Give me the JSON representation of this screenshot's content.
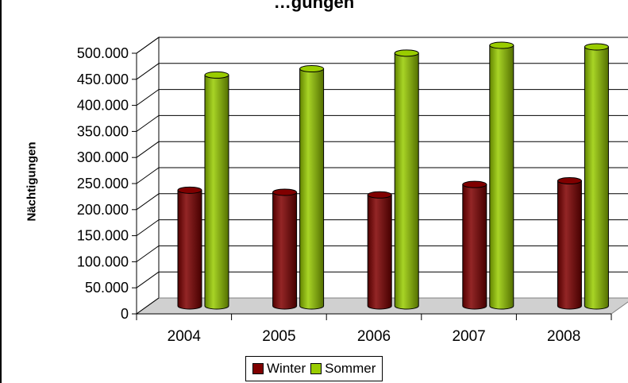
{
  "chart_data": {
    "type": "bar",
    "title": "…gungen",
    "xlabel": "",
    "ylabel": "Nächtigungen",
    "categories": [
      "2004",
      "2005",
      "2006",
      "2007",
      "2008"
    ],
    "ylim": [
      0,
      500000
    ],
    "yticks": [
      "0",
      "50.000",
      "100.000",
      "150.000",
      "200.000",
      "250.000",
      "300.000",
      "350.000",
      "400.000",
      "450.000",
      "500.000"
    ],
    "grid": true,
    "legend_position": "bottom",
    "series": [
      {
        "name": "Winter",
        "color": "#800000",
        "values": [
          222000,
          218000,
          213000,
          233000,
          240000
        ]
      },
      {
        "name": "Sommer",
        "color": "#99cc00",
        "values": [
          443000,
          455000,
          485000,
          500000,
          497000
        ]
      }
    ]
  }
}
